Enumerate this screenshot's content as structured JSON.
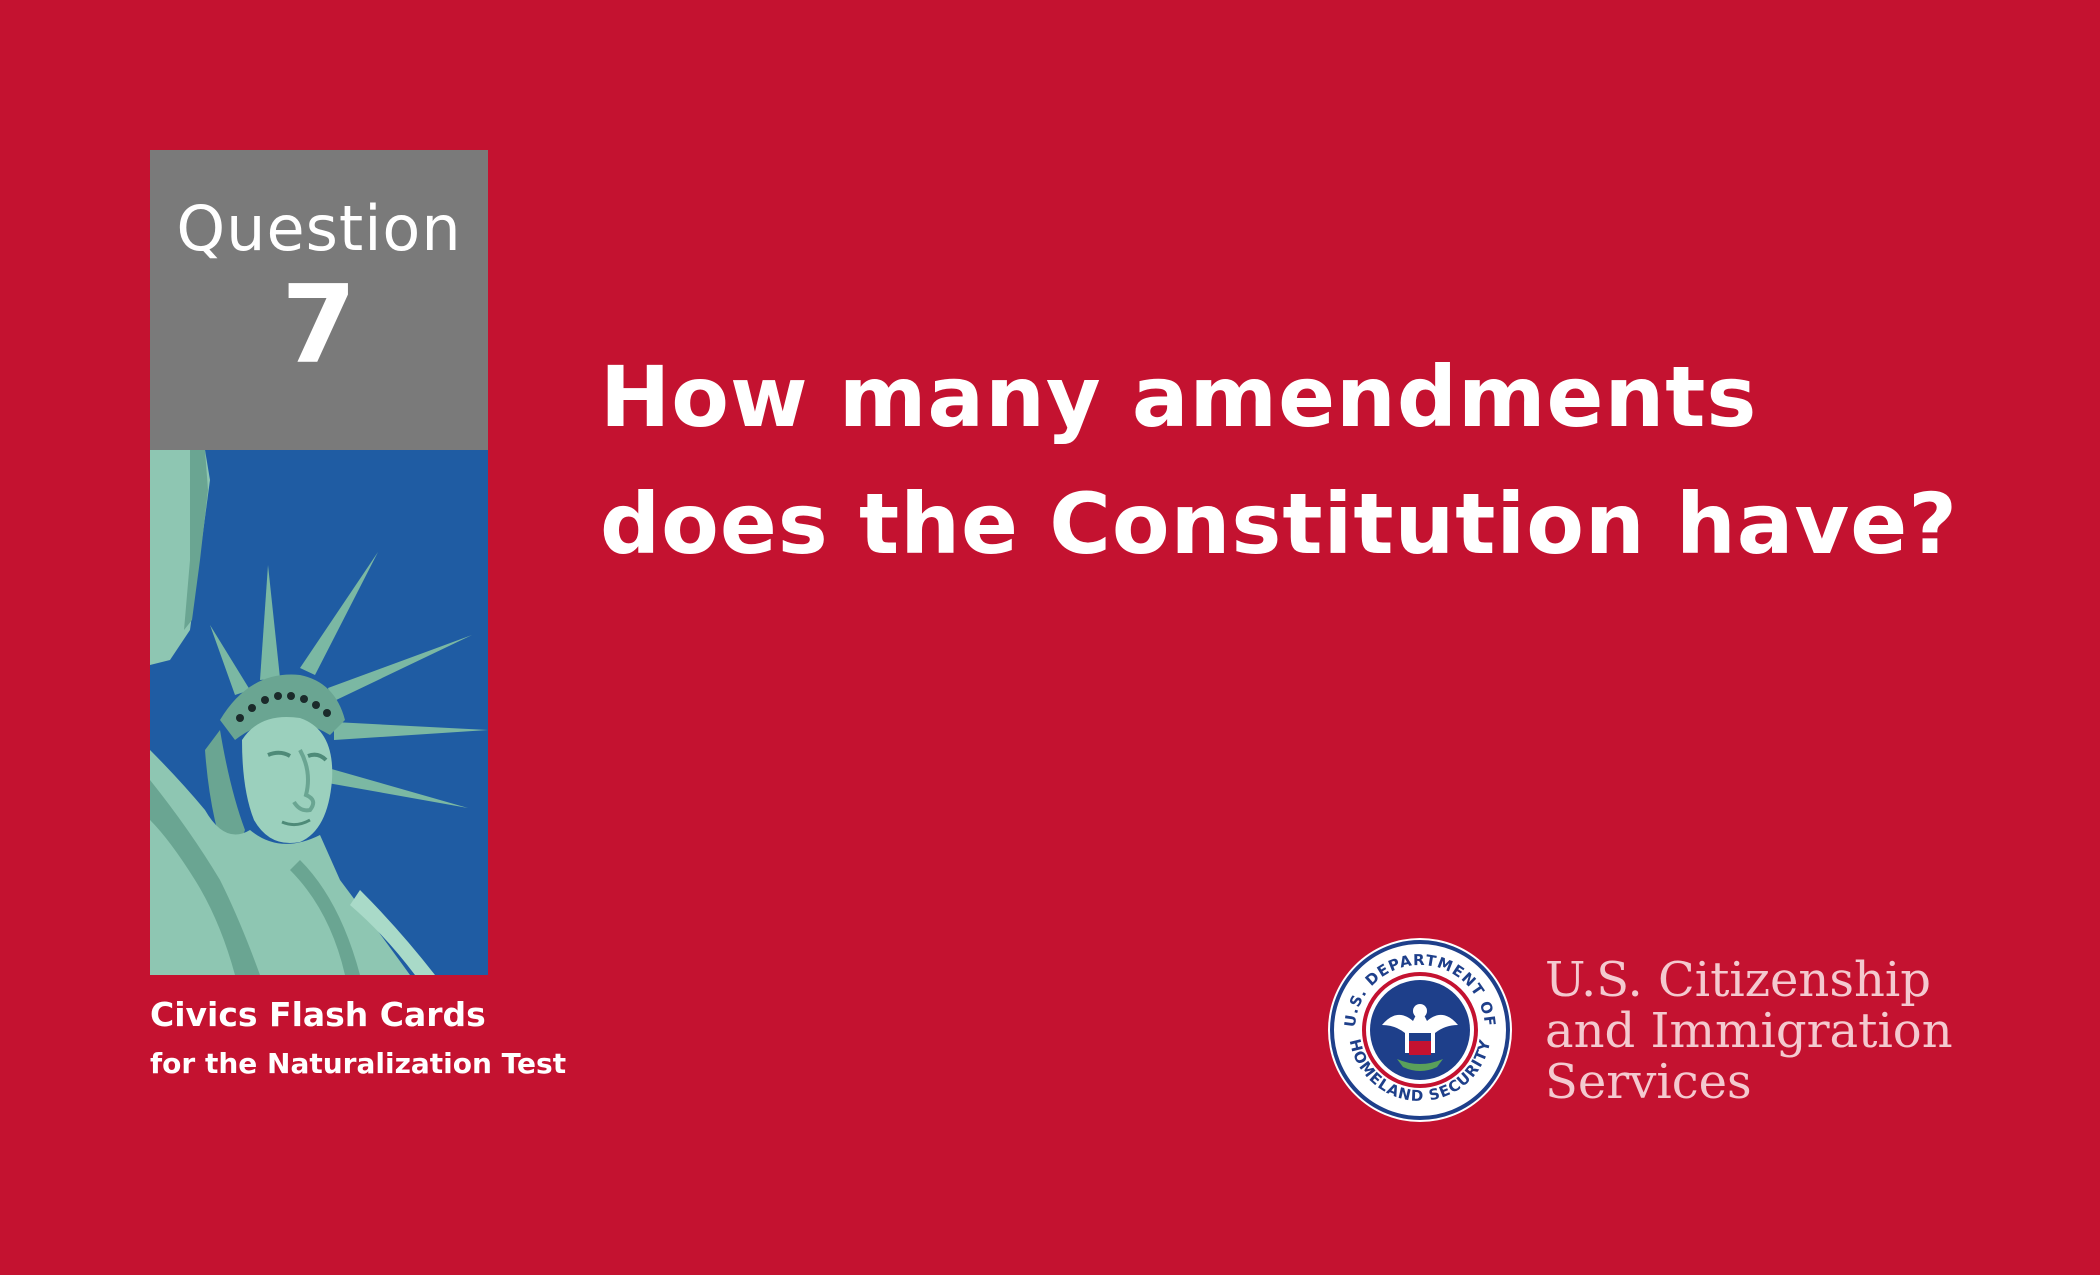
{
  "card": {
    "question_label": "Question",
    "question_number": "7",
    "question_line1": "How many amendments",
    "question_line2": "does the Constitution have?",
    "series_title": "Civics Flash Cards",
    "series_subtitle": "for the Naturalization Test"
  },
  "agency": {
    "line1": "U.S. Citizenship",
    "line2": "and Immigration",
    "line3": "Services",
    "seal_text_top": "U.S. DEPARTMENT OF",
    "seal_text_bottom": "HOMELAND SECURITY"
  },
  "icons": {
    "statue_image": "statue-of-liberty-icon",
    "seal": "dhs-seal-icon"
  },
  "colors": {
    "background": "#c41230",
    "header_panel": "#7a7a7a",
    "text": "#ffffff",
    "agency_text": "#f4c9cf",
    "sky": "#1f5ca3",
    "statue": "#8fc7b3",
    "seal_blue": "#1e3f8a"
  }
}
